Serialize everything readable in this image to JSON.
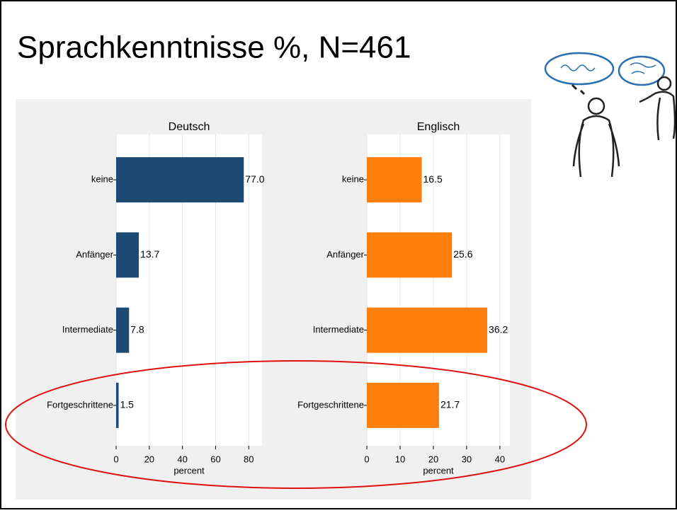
{
  "slide": {
    "title": "Sprachkenntnisse %, N=461"
  },
  "chart_data": [
    {
      "type": "barh",
      "title": "Deutsch",
      "categories": [
        "keine",
        "Anfänger",
        "Intermediate",
        "Fortgeschrittene"
      ],
      "values": [
        77.0,
        13.7,
        7.8,
        1.5
      ],
      "value_labels": [
        "77.0",
        "13.7",
        "7.8",
        "1.5"
      ],
      "color": "#1c4a72",
      "xlim": [
        0,
        88
      ],
      "xticks": [
        0,
        20,
        40,
        60,
        80
      ],
      "xlabel": "percent"
    },
    {
      "type": "barh",
      "title": "Englisch",
      "categories": [
        "keine",
        "Anfänger",
        "Intermediate",
        "Fortgeschrittene"
      ],
      "values": [
        16.5,
        25.6,
        36.2,
        21.7
      ],
      "value_labels": [
        "16.5",
        "25.6",
        "36.2",
        "21.7"
      ],
      "color": "#ff7f0e",
      "xlim": [
        0,
        43
      ],
      "xticks": [
        0,
        10,
        20,
        30,
        40
      ],
      "xlabel": "percent"
    }
  ]
}
